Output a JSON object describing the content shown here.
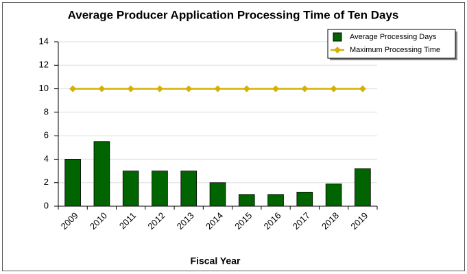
{
  "chart_data": {
    "type": "bar",
    "title": "Average Producer Application Processing Time of Ten Days",
    "x_label": "Fiscal Year",
    "categories": [
      "2009",
      "2010",
      "2011",
      "2012",
      "2013",
      "2014",
      "2015",
      "2016",
      "2017",
      "2018",
      "2019"
    ],
    "series": [
      {
        "name": "Average Processing Days",
        "type": "bar",
        "color": "#006400",
        "values": [
          4,
          5.5,
          3,
          3,
          3,
          2,
          1,
          1,
          1.2,
          1.9,
          3.2
        ]
      },
      {
        "name": "Maximum Processing Time",
        "type": "line",
        "color": "#d4b106",
        "values": [
          10,
          10,
          10,
          10,
          10,
          10,
          10,
          10,
          10,
          10,
          10
        ]
      }
    ],
    "ylim": [
      0,
      14
    ],
    "yticks": [
      0,
      2,
      4,
      6,
      8,
      10,
      12,
      14
    ],
    "grid": true,
    "legend": "top-right"
  }
}
